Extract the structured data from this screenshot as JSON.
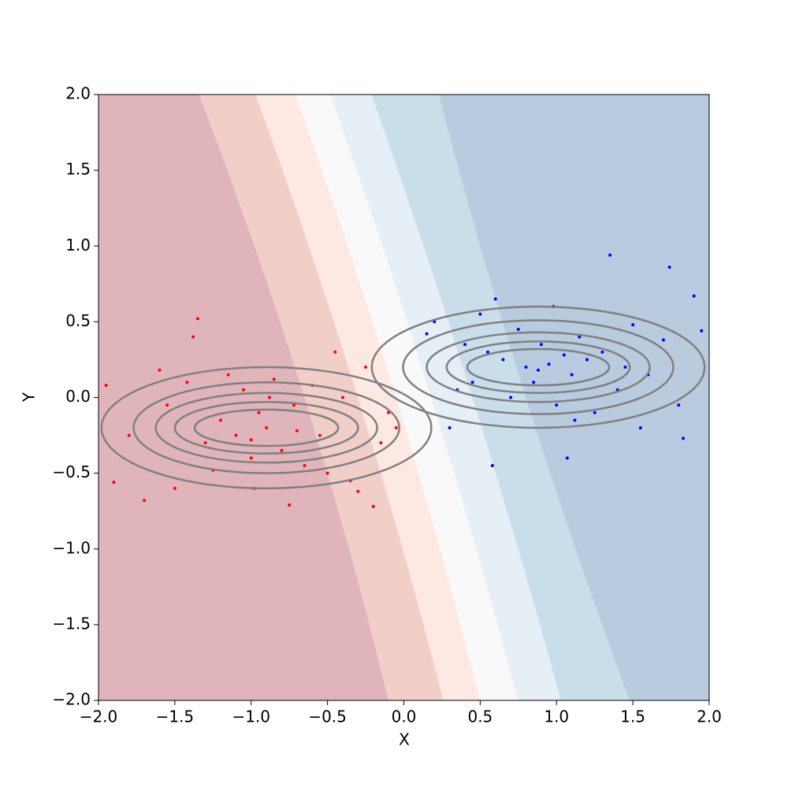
{
  "chart_data": {
    "type": "scatter",
    "xlabel": "X",
    "ylabel": "Y",
    "xlim": [
      -2,
      2
    ],
    "ylim": [
      -2,
      2
    ],
    "xticks": [
      {
        "value": -2,
        "label": "−2.0"
      },
      {
        "value": -1.5,
        "label": "−1.5"
      },
      {
        "value": -1,
        "label": "−1.0"
      },
      {
        "value": -0.5,
        "label": "−0.5"
      },
      {
        "value": 0,
        "label": "0.0"
      },
      {
        "value": 0.5,
        "label": "0.5"
      },
      {
        "value": 1,
        "label": "1.0"
      },
      {
        "value": 1.5,
        "label": "1.5"
      },
      {
        "value": 2,
        "label": "2.0"
      }
    ],
    "yticks": [
      {
        "value": -2,
        "label": "−2.0"
      },
      {
        "value": -1.5,
        "label": "−1.5"
      },
      {
        "value": -1,
        "label": "−1.0"
      },
      {
        "value": -0.5,
        "label": "−0.5"
      },
      {
        "value": 0,
        "label": "0.0"
      },
      {
        "value": 0.5,
        "label": "0.5"
      },
      {
        "value": 1,
        "label": "1.0"
      },
      {
        "value": 1.5,
        "label": "1.5"
      },
      {
        "value": 2,
        "label": "2.0"
      }
    ],
    "band_colors": [
      "#e0b4bb",
      "#f1cfc8",
      "#fde9e1",
      "#f9f9f9",
      "#e6eef6",
      "#c8dfea",
      "#b8cbdf"
    ],
    "boundary_y": [
      2,
      0,
      -2
    ],
    "boundaries": [
      [
        -1.34,
        -0.65,
        -0.1
      ],
      [
        -0.97,
        -0.3,
        0.26
      ],
      [
        -0.71,
        -0.05,
        0.5
      ],
      [
        -0.48,
        0.18,
        0.75
      ],
      [
        -0.21,
        0.45,
        1.03
      ],
      [
        0.23,
        0.8,
        1.48
      ]
    ],
    "ellipse_color": "#808080",
    "ellipses": [
      {
        "cx": -0.9,
        "cy": -0.2,
        "rx": 1.08,
        "ry": 0.4
      },
      {
        "cx": -0.9,
        "cy": -0.2,
        "rx": 0.87,
        "ry": 0.3
      },
      {
        "cx": -0.9,
        "cy": -0.2,
        "rx": 0.725,
        "ry": 0.23
      },
      {
        "cx": -0.9,
        "cy": -0.2,
        "rx": 0.6,
        "ry": 0.17
      },
      {
        "cx": -0.9,
        "cy": -0.2,
        "rx": 0.47,
        "ry": 0.12
      },
      {
        "cx": 0.88,
        "cy": 0.2,
        "rx": 1.09,
        "ry": 0.4
      },
      {
        "cx": 0.88,
        "cy": 0.2,
        "rx": 0.885,
        "ry": 0.31
      },
      {
        "cx": 0.88,
        "cy": 0.2,
        "rx": 0.73,
        "ry": 0.23
      },
      {
        "cx": 0.88,
        "cy": 0.2,
        "rx": 0.6,
        "ry": 0.17
      },
      {
        "cx": 0.88,
        "cy": 0.2,
        "rx": 0.465,
        "ry": 0.12
      }
    ],
    "series": [
      {
        "color": "#ff0000",
        "x": [
          -1.35,
          -1.38,
          -0.75,
          -1.95,
          -1.9,
          -1.7,
          -1.6,
          -1.5,
          -1.42,
          -1.3,
          -1.2,
          -1.1,
          -1.05,
          -1.0,
          -0.95,
          -0.9,
          -0.85,
          -0.8,
          -0.72,
          -0.65,
          -0.6,
          -0.55,
          -0.5,
          -0.4,
          -0.3,
          -0.25,
          -0.15,
          -0.1,
          -1.25,
          -1.15,
          -0.98,
          -0.88,
          -0.7,
          -0.45,
          -0.35,
          -1.8,
          -1.55,
          -0.2,
          -0.05,
          -1.0
        ],
        "y": [
          0.52,
          0.4,
          -0.71,
          0.08,
          -0.56,
          -0.68,
          0.18,
          -0.6,
          0.1,
          -0.3,
          -0.15,
          -0.25,
          0.05,
          -0.4,
          -0.1,
          -0.2,
          0.12,
          -0.35,
          -0.05,
          -0.45,
          0.08,
          -0.25,
          -0.5,
          0.0,
          -0.62,
          0.2,
          -0.3,
          -0.1,
          -0.48,
          0.15,
          -0.6,
          0.0,
          -0.22,
          0.3,
          -0.55,
          -0.25,
          -0.05,
          -0.72,
          -0.2,
          -0.28
        ]
      },
      {
        "color": "#0000ff",
        "x": [
          1.35,
          1.74,
          1.9,
          1.83,
          1.07,
          0.58,
          0.5,
          0.4,
          0.2,
          0.3,
          0.45,
          0.55,
          0.6,
          0.7,
          0.75,
          0.8,
          0.85,
          0.9,
          0.95,
          1.0,
          1.05,
          1.1,
          1.15,
          1.2,
          1.25,
          1.3,
          1.4,
          1.5,
          1.6,
          1.7,
          1.8,
          1.95,
          0.65,
          0.88,
          1.12,
          0.35,
          1.45,
          0.98,
          0.15,
          1.55
        ],
        "y": [
          0.94,
          0.86,
          0.67,
          -0.27,
          -0.4,
          -0.45,
          0.55,
          0.35,
          0.5,
          -0.2,
          0.1,
          0.3,
          0.65,
          0.0,
          0.45,
          0.2,
          0.1,
          0.35,
          0.22,
          -0.05,
          0.28,
          0.15,
          0.4,
          0.25,
          -0.1,
          0.3,
          0.05,
          0.48,
          0.15,
          0.38,
          -0.05,
          0.44,
          0.25,
          0.18,
          -0.15,
          0.05,
          0.2,
          0.6,
          0.42,
          -0.2
        ]
      }
    ]
  }
}
